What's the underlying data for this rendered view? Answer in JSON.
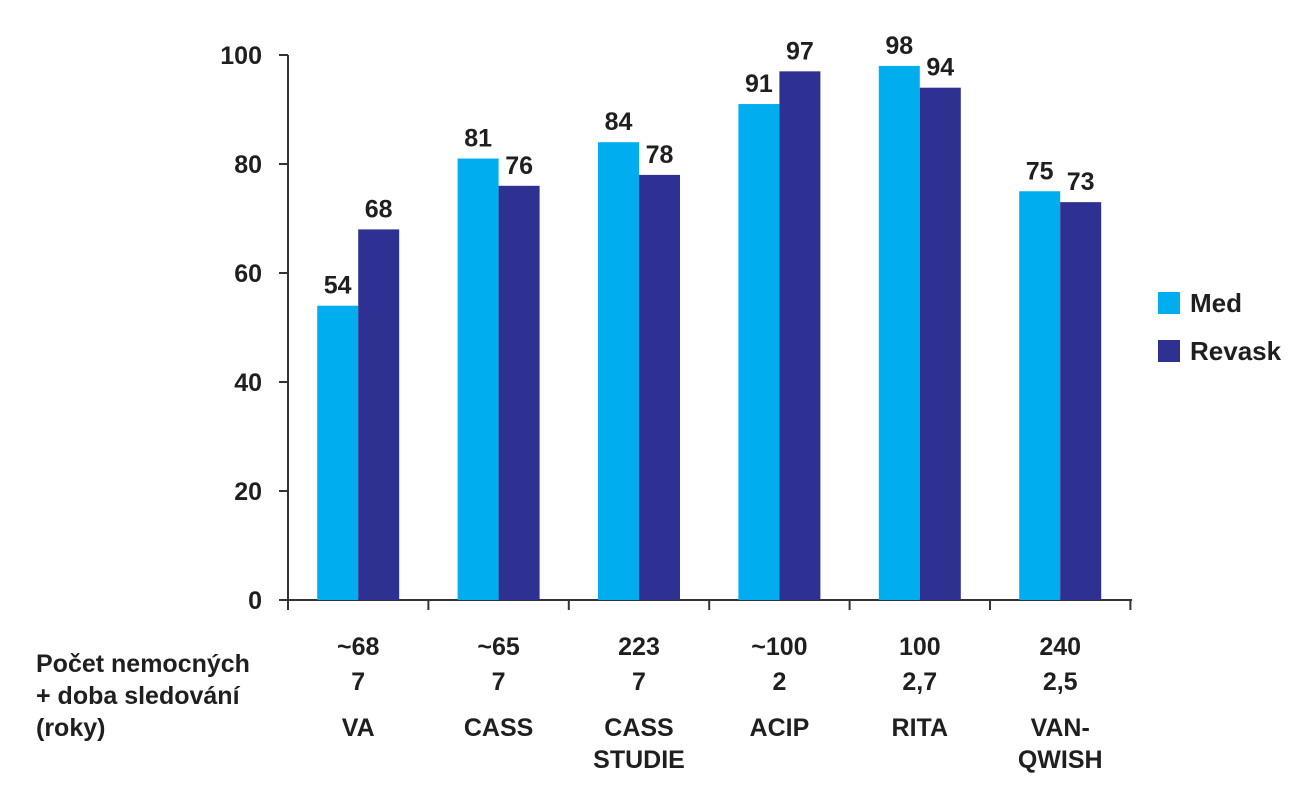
{
  "chart_data": {
    "type": "bar",
    "categories": [
      {
        "counts": "~68",
        "years": "7",
        "name": [
          "VA"
        ]
      },
      {
        "counts": "~65",
        "years": "7",
        "name": [
          "CASS"
        ]
      },
      {
        "counts": "223",
        "years": "7",
        "name": [
          "CASS",
          "STUDIE"
        ]
      },
      {
        "counts": "~100",
        "years": "2",
        "name": [
          "ACIP"
        ]
      },
      {
        "counts": "100",
        "years": "2,7",
        "name": [
          "RITA"
        ]
      },
      {
        "counts": "240",
        "years": "2,5",
        "name": [
          "VAN-",
          "QWISH"
        ]
      }
    ],
    "series": [
      {
        "name": "Med",
        "color": "#00aeef",
        "values": [
          54,
          81,
          84,
          91,
          98,
          75
        ]
      },
      {
        "name": "Revask",
        "color": "#2e3192",
        "values": [
          68,
          76,
          78,
          97,
          94,
          73
        ]
      }
    ],
    "ylim": [
      0,
      100
    ],
    "yticks": [
      0,
      20,
      40,
      60,
      80,
      100
    ],
    "row_label": [
      "Počet nemocných",
      "+ doba sledování",
      "(roky)"
    ],
    "legend_position": "right",
    "grid": false
  }
}
